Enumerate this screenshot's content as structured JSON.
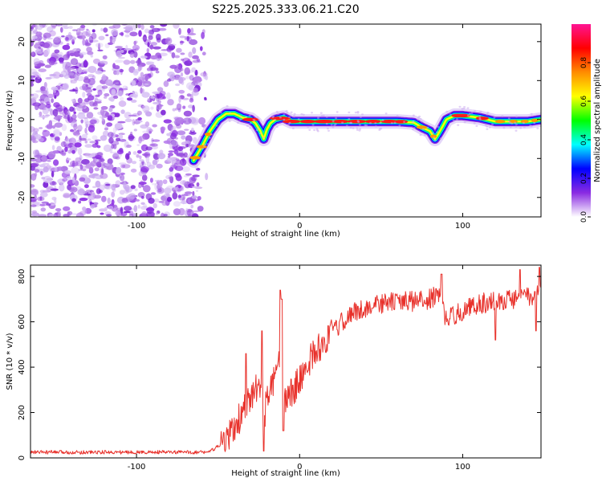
{
  "title": "S225.2025.333.06.21.C20",
  "chart_data": [
    {
      "type": "heatmap",
      "xlabel": "Height of straight line (km)",
      "ylabel": "Frequency (Hz)",
      "xlim": [
        -165,
        148
      ],
      "ylim": [
        -25,
        24.5
      ],
      "xticks": [
        -100,
        0,
        100
      ],
      "yticks": [
        -20,
        -10,
        0,
        10,
        20
      ],
      "colorbar": {
        "label": "Normalized spectral amplitude",
        "range": [
          0,
          1
        ],
        "ticks": [
          "0.0",
          "0.2",
          "0.4",
          "0.6",
          "0.8"
        ],
        "colors": [
          "#ffffff",
          "#8a2be2",
          "#0000ff",
          "#00ffff",
          "#00ff00",
          "#ffff00",
          "#ff8c00",
          "#ff0000",
          "#ff1493"
        ]
      },
      "noise_region_x": [
        -165,
        -62
      ],
      "ridge_x": [
        -65,
        -60,
        -55,
        -50,
        -45,
        -40,
        -35,
        -30,
        -27,
        -24,
        -22,
        -20,
        -18,
        -15,
        -10,
        -5,
        0,
        20,
        40,
        60,
        70,
        75,
        80,
        83,
        86,
        90,
        95,
        100,
        110,
        120,
        130,
        140,
        148
      ],
      "ridge_y": [
        -10.5,
        -7,
        -3,
        0,
        1.5,
        1.5,
        0.5,
        0,
        -1,
        -3,
        -5,
        -2.5,
        -1,
        0,
        0.5,
        -0.5,
        -0.5,
        -0.5,
        -0.5,
        -0.5,
        -0.8,
        -2,
        -3,
        -5,
        -3,
        0,
        1,
        1,
        0.5,
        -0.5,
        -0.5,
        -0.5,
        0
      ]
    },
    {
      "type": "line",
      "xlabel": "Height of straight line (km)",
      "ylabel": "SNR (10 * v/v)",
      "xlim": [
        -165,
        148
      ],
      "ylim": [
        0,
        850
      ],
      "xticks": [
        -100,
        0,
        100
      ],
      "yticks": [
        0,
        200,
        400,
        600,
        800
      ],
      "series": [
        {
          "name": "SNR",
          "color": "#e8312b",
          "x": [
            -165,
            -120,
            -80,
            -60,
            -55,
            -50,
            -45,
            -40,
            -35,
            -30,
            -27,
            -25,
            -22,
            -20,
            -15,
            -13,
            -10,
            -5,
            0,
            5,
            10,
            15,
            20,
            25,
            30,
            40,
            50,
            60,
            70,
            80,
            85,
            90,
            100,
            110,
            120,
            130,
            140,
            148
          ],
          "y": [
            25,
            25,
            25,
            25,
            28,
            50,
            80,
            130,
            200,
            260,
            300,
            320,
            170,
            260,
            350,
            420,
            250,
            290,
            340,
            420,
            470,
            510,
            550,
            590,
            630,
            660,
            680,
            690,
            690,
            700,
            720,
            610,
            650,
            680,
            690,
            700,
            710,
            715
          ]
        }
      ],
      "spikes": [
        {
          "x": -33,
          "y": 460
        },
        {
          "x": -23,
          "y": 560
        },
        {
          "x": -12,
          "y": 740
        },
        {
          "x": -11,
          "y": 700
        },
        {
          "x": 87,
          "y": 810
        },
        {
          "x": 135,
          "y": 830
        },
        {
          "x": 147,
          "y": 840
        }
      ],
      "dips": [
        {
          "x": -22,
          "y": 30
        },
        {
          "x": -10,
          "y": 120
        },
        {
          "x": 120,
          "y": 520
        },
        {
          "x": 145,
          "y": 560
        }
      ]
    }
  ]
}
